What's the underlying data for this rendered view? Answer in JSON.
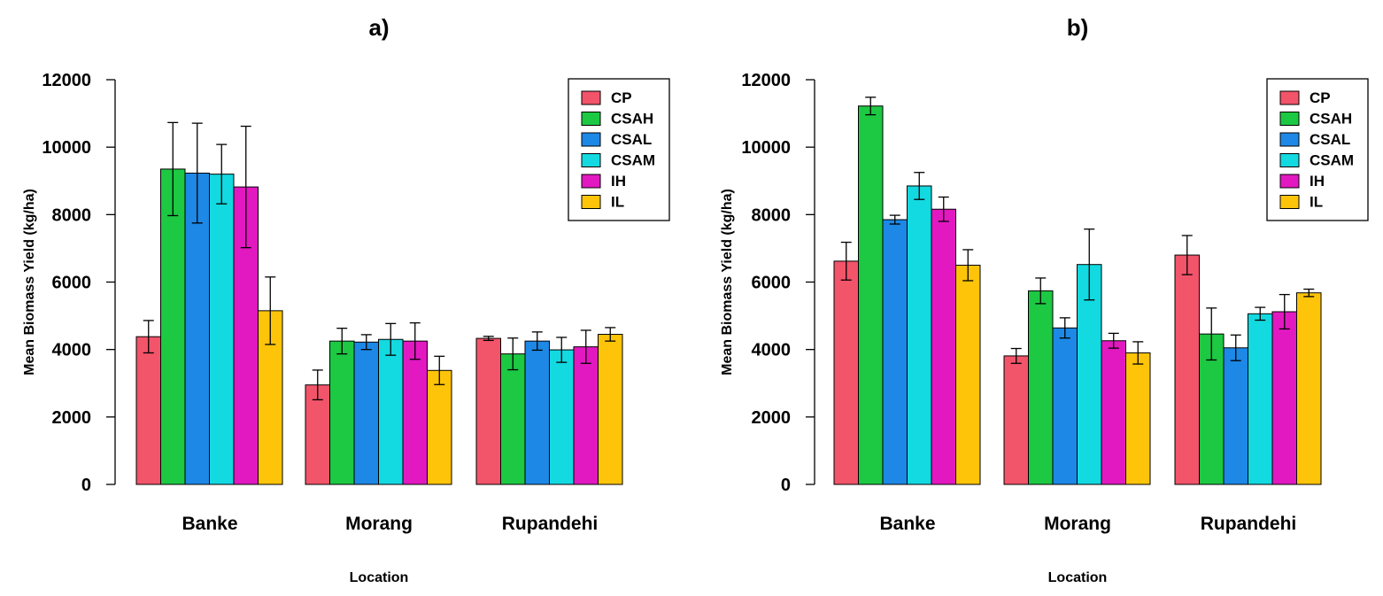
{
  "chart_data": [
    {
      "type": "bar",
      "title": "a)",
      "xlabel": "Location",
      "ylabel": "Mean Biomass Yield (kg/ha)",
      "ylim": [
        0,
        12000
      ],
      "yticks": [
        0,
        2000,
        4000,
        6000,
        8000,
        10000,
        12000
      ],
      "categories": [
        "Banke",
        "Morang",
        "Rupandehi"
      ],
      "legend_position": "top-right",
      "series": [
        {
          "name": "CP",
          "color": "#f2546a",
          "values": [
            4380,
            2950,
            4330
          ],
          "errors": [
            480,
            440,
            60
          ]
        },
        {
          "name": "CSAH",
          "color": "#1dc843",
          "values": [
            9350,
            4250,
            3870
          ],
          "errors": [
            1380,
            380,
            470
          ]
        },
        {
          "name": "CSAL",
          "color": "#1d88e6",
          "values": [
            9230,
            4220,
            4250
          ],
          "errors": [
            1480,
            220,
            270
          ]
        },
        {
          "name": "CSAM",
          "color": "#13d9e0",
          "values": [
            9200,
            4300,
            3990
          ],
          "errors": [
            880,
            470,
            370
          ]
        },
        {
          "name": "IH",
          "color": "#e218c1",
          "values": [
            8820,
            4250,
            4080
          ],
          "errors": [
            1800,
            540,
            490
          ]
        },
        {
          "name": "IL",
          "color": "#fec40a",
          "values": [
            5150,
            3380,
            4450
          ],
          "errors": [
            1000,
            420,
            200
          ]
        }
      ]
    },
    {
      "type": "bar",
      "title": "b)",
      "xlabel": "Location",
      "ylabel": "Mean Biomass Yield (kg/ha)",
      "ylim": [
        0,
        12000
      ],
      "yticks": [
        0,
        2000,
        4000,
        6000,
        8000,
        10000,
        12000
      ],
      "categories": [
        "Banke",
        "Morang",
        "Rupandehi"
      ],
      "legend_position": "top-right",
      "series": [
        {
          "name": "CP",
          "color": "#f2546a",
          "values": [
            6620,
            3810,
            6800
          ],
          "errors": [
            560,
            220,
            580
          ]
        },
        {
          "name": "CSAH",
          "color": "#1dc843",
          "values": [
            11220,
            5740,
            4460
          ],
          "errors": [
            260,
            380,
            770
          ]
        },
        {
          "name": "CSAL",
          "color": "#1d88e6",
          "values": [
            7850,
            4640,
            4050
          ],
          "errors": [
            130,
            300,
            380
          ]
        },
        {
          "name": "CSAM",
          "color": "#13d9e0",
          "values": [
            8850,
            6520,
            5060
          ],
          "errors": [
            400,
            1050,
            190
          ]
        },
        {
          "name": "IH",
          "color": "#e218c1",
          "values": [
            8160,
            4260,
            5120
          ],
          "errors": [
            360,
            220,
            510
          ]
        },
        {
          "name": "IL",
          "color": "#fec40a",
          "values": [
            6500,
            3900,
            5680
          ],
          "errors": [
            460,
            330,
            110
          ]
        }
      ]
    }
  ]
}
